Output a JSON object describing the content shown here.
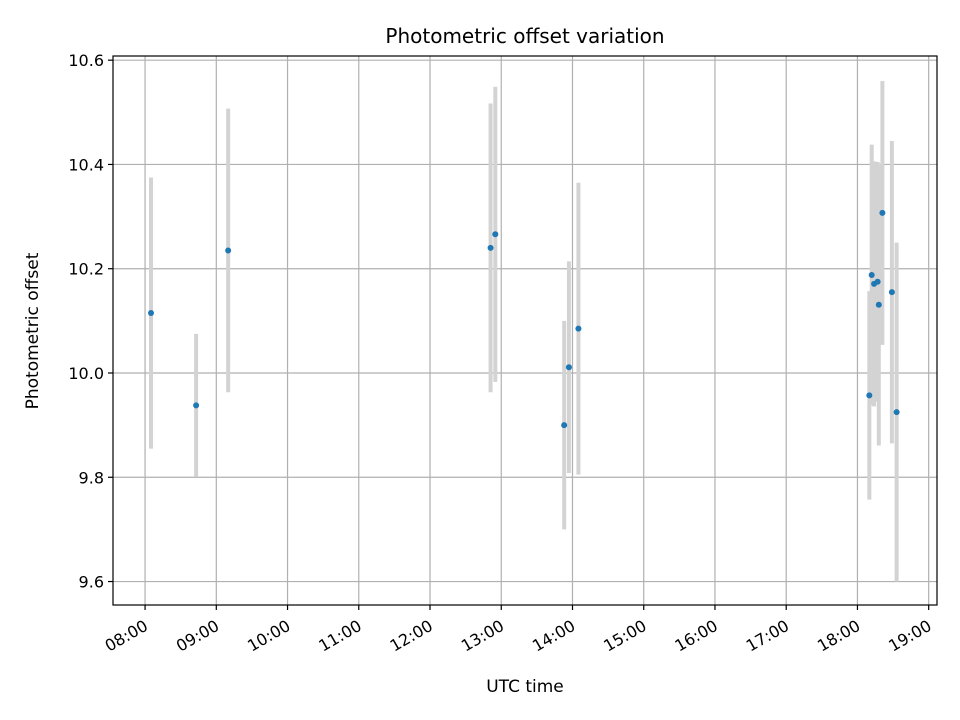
{
  "chart_data": {
    "type": "scatter",
    "title": "Photometric offset variation",
    "xlabel": "UTC time",
    "ylabel": "Photometric offset",
    "x_unit": "UTC time (HH:MM)",
    "xlim": [
      "07:33",
      "19:07"
    ],
    "ylim": [
      9.555,
      10.608
    ],
    "x_ticks": [
      "08:00",
      "09:00",
      "10:00",
      "11:00",
      "12:00",
      "13:00",
      "14:00",
      "15:00",
      "16:00",
      "17:00",
      "18:00",
      "19:00"
    ],
    "y_ticks": [
      9.6,
      9.8,
      10.0,
      10.2,
      10.4,
      10.6
    ],
    "y_tick_labels": [
      "9.6",
      "9.8",
      "10.0",
      "10.2",
      "10.4",
      "10.6"
    ],
    "grid": true,
    "point_color": "#1f77b4",
    "errorbar_color": "#d3d3d3",
    "points": [
      {
        "x": "08:05",
        "y": 10.115,
        "err": 0.26
      },
      {
        "x": "08:43",
        "y": 9.938,
        "err": 0.137
      },
      {
        "x": "09:10",
        "y": 10.235,
        "err": 0.272
      },
      {
        "x": "12:51",
        "y": 10.24,
        "err": 0.277
      },
      {
        "x": "12:55",
        "y": 10.266,
        "err": 0.283
      },
      {
        "x": "13:53",
        "y": 9.9,
        "err": 0.2
      },
      {
        "x": "13:57",
        "y": 10.011,
        "err": 0.203
      },
      {
        "x": "14:05",
        "y": 10.085,
        "err": 0.28
      },
      {
        "x": "18:10",
        "y": 9.957,
        "err": 0.2
      },
      {
        "x": "18:12",
        "y": 10.188,
        "err": 0.25
      },
      {
        "x": "18:14",
        "y": 10.171,
        "err": 0.235
      },
      {
        "x": "18:17",
        "y": 10.175,
        "err": 0.23
      },
      {
        "x": "18:18",
        "y": 10.131,
        "err": 0.27
      },
      {
        "x": "18:21",
        "y": 10.307,
        "err": 0.253
      },
      {
        "x": "18:29",
        "y": 10.155,
        "err": 0.29
      },
      {
        "x": "18:33",
        "y": 9.925,
        "err": 0.325
      }
    ]
  }
}
